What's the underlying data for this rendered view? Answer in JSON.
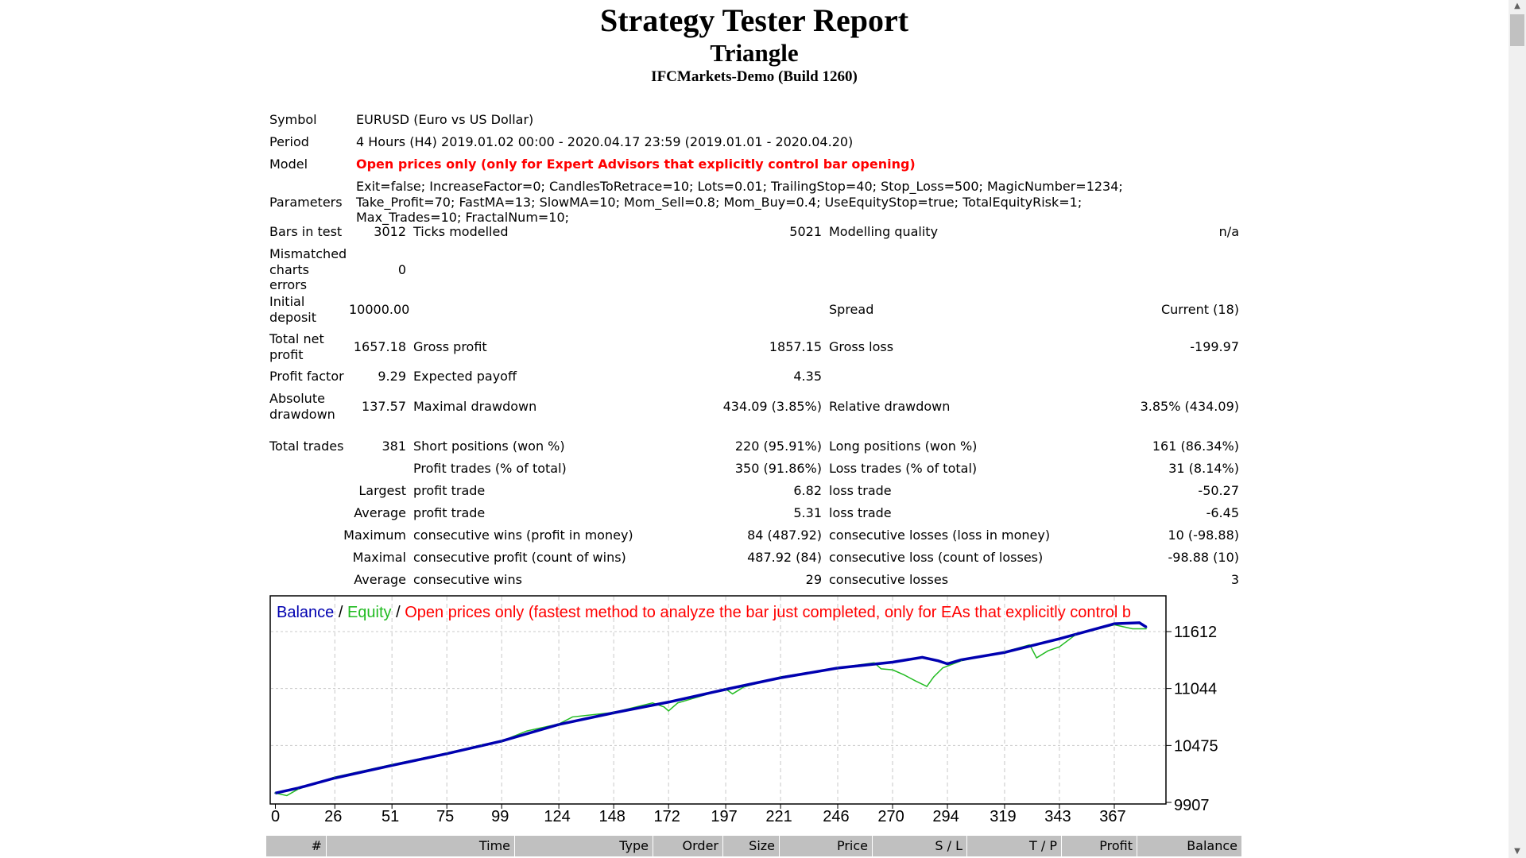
{
  "header": {
    "title": "Strategy Tester Report",
    "expert": "Triangle",
    "server": "IFCMarkets-Demo (Build 1260)"
  },
  "info": {
    "symbol_label": "Symbol",
    "symbol": "EURUSD (Euro vs US Dollar)",
    "period_label": "Period",
    "period": "4 Hours (H4) 2019.01.02 00:00 - 2020.04.17 23:59 (2019.01.01 - 2020.04.20)",
    "model_label": "Model",
    "model": "Open prices only (only for Expert Advisors that explicitly control bar opening)",
    "parameters_label": "Parameters",
    "parameters": "Exit=false; IncreaseFactor=0; CandlesToRetrace=10; Lots=0.01; TrailingStop=40; Stop_Loss=500; MagicNumber=1234; Take_Profit=70; FastMA=13; SlowMA=10; Mom_Sell=0.8; Mom_Buy=0.4; UseEquityStop=true; TotalEquityRisk=1; Max_Trades=10; FractalNum=10;"
  },
  "stats": {
    "bars_label": "Bars in test",
    "bars": "3012",
    "ticks_label": "Ticks modelled",
    "ticks": "5021",
    "quality_label": "Modelling quality",
    "quality": "n/a",
    "mismatch_label": "Mismatched charts errors",
    "mismatch": "0",
    "deposit_label": "Initial deposit",
    "deposit": "10000.00",
    "spread_label": "Spread",
    "spread": "Current (18)",
    "net_label": "Total net profit",
    "net": "1657.18",
    "gross_profit_label": "Gross profit",
    "gross_profit": "1857.15",
    "gross_loss_label": "Gross loss",
    "gross_loss": "-199.97",
    "pf_label": "Profit factor",
    "pf": "9.29",
    "payoff_label": "Expected payoff",
    "payoff": "4.35",
    "abs_dd_label": "Absolute drawdown",
    "abs_dd": "137.57",
    "max_dd_label": "Maximal drawdown",
    "max_dd": "434.09 (3.85%)",
    "rel_dd_label": "Relative drawdown",
    "rel_dd": "3.85% (434.09)",
    "total_trades_label": "Total trades",
    "total_trades": "381",
    "short_label": "Short positions (won %)",
    "short": "220 (95.91%)",
    "long_label": "Long positions (won %)",
    "long": "161 (86.34%)",
    "profit_trades_label": "Profit trades (% of total)",
    "profit_trades": "350 (91.86%)",
    "loss_trades_label": "Loss trades (% of total)",
    "loss_trades": "31 (8.14%)",
    "largest_label": "Largest",
    "largest_profit_label": "profit trade",
    "largest_profit": "6.82",
    "largest_loss_label": "loss trade",
    "largest_loss": "-50.27",
    "average_label": "Average",
    "average_profit_label": "profit trade",
    "average_profit": "5.31",
    "average_loss_label": "loss trade",
    "average_loss": "-6.45",
    "maximum_label": "Maximum",
    "max_wins_label": "consecutive wins (profit in money)",
    "max_wins": "84 (487.92)",
    "max_losses_label": "consecutive losses (loss in money)",
    "max_losses": "10 (-98.88)",
    "maximal_label": "Maximal",
    "maximal_profit_label": "consecutive profit (count of wins)",
    "maximal_profit": "487.92 (84)",
    "maximal_loss_label": "consecutive loss (count of losses)",
    "maximal_loss": "-98.88 (10)",
    "avg_cons_label": "Average",
    "avg_cons_wins_label": "consecutive wins",
    "avg_cons_wins": "29",
    "avg_cons_losses_label": "consecutive losses",
    "avg_cons_losses": "3"
  },
  "chart_data": {
    "type": "line",
    "legend": {
      "balance": "Balance",
      "sep1": " / ",
      "equity": "Equity",
      "sep2": " / ",
      "model": "Open prices only (fastest method to analyze the bar just completed, only for EAs that explicitly control b"
    },
    "colors": {
      "balance": "#0000b0",
      "equity": "#22bb22",
      "model": "#ff0000",
      "grid": "#c8c8c8"
    },
    "x_ticks": [
      "0",
      "26",
      "51",
      "75",
      "99",
      "124",
      "148",
      "172",
      "197",
      "221",
      "246",
      "270",
      "294",
      "319",
      "343",
      "367"
    ],
    "y_ticks": [
      "9907",
      "10475",
      "11044",
      "11612"
    ],
    "ylim": [
      9907,
      11612
    ],
    "grid": true,
    "series": [
      {
        "name": "Balance",
        "points": [
          [
            0,
            10000
          ],
          [
            10,
            10050
          ],
          [
            26,
            10150
          ],
          [
            51,
            10276
          ],
          [
            75,
            10393
          ],
          [
            99,
            10519
          ],
          [
            124,
            10685
          ],
          [
            148,
            10801
          ],
          [
            172,
            10908
          ],
          [
            197,
            11035
          ],
          [
            221,
            11151
          ],
          [
            246,
            11248
          ],
          [
            270,
            11307
          ],
          [
            283,
            11355
          ],
          [
            290,
            11320
          ],
          [
            294,
            11290
          ],
          [
            300,
            11330
          ],
          [
            319,
            11404
          ],
          [
            343,
            11540
          ],
          [
            367,
            11690
          ],
          [
            378,
            11700
          ],
          [
            381,
            11657
          ]
        ]
      },
      {
        "name": "Equity",
        "points": [
          [
            0,
            10000
          ],
          [
            5,
            9975
          ],
          [
            10,
            10040
          ],
          [
            26,
            10160
          ],
          [
            51,
            10285
          ],
          [
            75,
            10400
          ],
          [
            90,
            10480
          ],
          [
            99,
            10519
          ],
          [
            110,
            10620
          ],
          [
            124,
            10690
          ],
          [
            130,
            10760
          ],
          [
            148,
            10805
          ],
          [
            165,
            10900
          ],
          [
            170,
            10860
          ],
          [
            172,
            10820
          ],
          [
            176,
            10900
          ],
          [
            197,
            11040
          ],
          [
            200,
            10990
          ],
          [
            205,
            11060
          ],
          [
            221,
            11160
          ],
          [
            246,
            11250
          ],
          [
            262,
            11300
          ],
          [
            265,
            11240
          ],
          [
            270,
            11230
          ],
          [
            275,
            11180
          ],
          [
            280,
            11120
          ],
          [
            285,
            11064
          ],
          [
            288,
            11160
          ],
          [
            292,
            11250
          ],
          [
            300,
            11320
          ],
          [
            319,
            11410
          ],
          [
            330,
            11480
          ],
          [
            333,
            11350
          ],
          [
            338,
            11420
          ],
          [
            343,
            11460
          ],
          [
            350,
            11580
          ],
          [
            367,
            11680
          ],
          [
            375,
            11640
          ],
          [
            381,
            11640
          ]
        ]
      }
    ]
  },
  "trades_table": {
    "columns": [
      "#",
      "Time",
      "Type",
      "Order",
      "Size",
      "Price",
      "S / L",
      "T / P",
      "Profit",
      "Balance"
    ]
  },
  "scrollbar": {
    "position": 0.02
  }
}
